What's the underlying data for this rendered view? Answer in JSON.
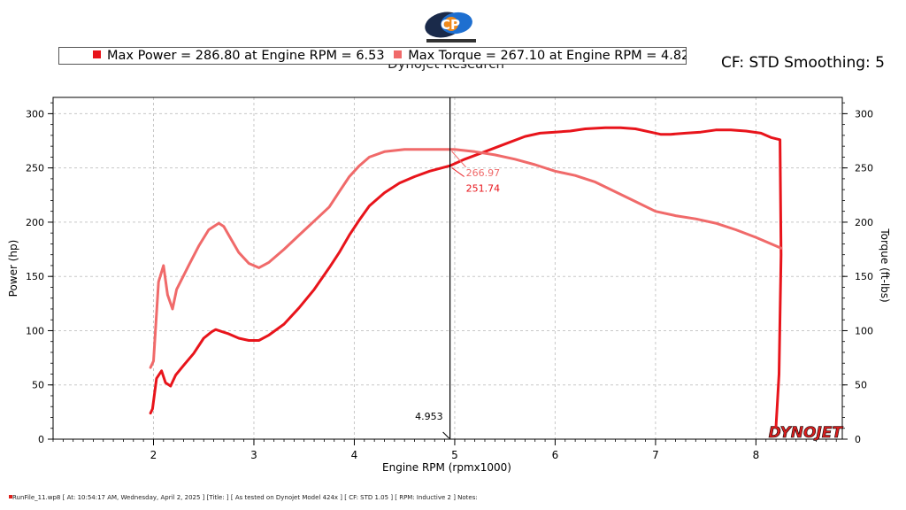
{
  "header": {
    "subtitle": "Dynojet Research",
    "cf_label": "CF: STD Smoothing: 5"
  },
  "legend": {
    "power_text": "Max Power = 286.80 at Engine RPM = 6.53",
    "torque_text": "Max Torque = 267.10 at Engine RPM = 4.82"
  },
  "footer": {
    "text": "RunFile_11.wp8 [ At: 10:54:17 AM, Wednesday, April 2, 2025 ] [Title: ]  [ As tested on Dynojet Model 424x ] [ CF: STD 1.05 ] [ RPM: Inductive 2 ] Notes:"
  },
  "watermark": "DYNOJET",
  "colors": {
    "power": "#e8141b",
    "torque": "#f06a6a",
    "cursor": "#000000"
  },
  "chart_data": {
    "type": "line",
    "xlabel": "Engine RPM (rpmx1000)",
    "ylabel": "Power (hp)",
    "y2label": "Torque (ft-lbs)",
    "xlim": [
      1.0,
      8.86
    ],
    "ylim": [
      0,
      315
    ],
    "y2lim": [
      0,
      315
    ],
    "x_ticks": [
      2,
      3,
      4,
      5,
      6,
      7,
      8
    ],
    "y_ticks": [
      0,
      50,
      100,
      150,
      200,
      250,
      300
    ],
    "y2_ticks": [
      0,
      50,
      100,
      150,
      200,
      250,
      300
    ],
    "grid": true,
    "cursor": {
      "x": 4.953,
      "label": "4.953",
      "power": 251.74,
      "torque": 266.97,
      "power_label": "251.74",
      "torque_label": "266.97"
    },
    "series": [
      {
        "key": "power",
        "points": [
          [
            1.97,
            24
          ],
          [
            1.99,
            28
          ],
          [
            2.03,
            56
          ],
          [
            2.08,
            63
          ],
          [
            2.12,
            52
          ],
          [
            2.17,
            49
          ],
          [
            2.22,
            59
          ],
          [
            2.3,
            68
          ],
          [
            2.4,
            79
          ],
          [
            2.5,
            93
          ],
          [
            2.58,
            99
          ],
          [
            2.62,
            101
          ],
          [
            2.75,
            97
          ],
          [
            2.85,
            93
          ],
          [
            2.95,
            91
          ],
          [
            3.05,
            91
          ],
          [
            3.15,
            96
          ],
          [
            3.3,
            106
          ],
          [
            3.45,
            121
          ],
          [
            3.6,
            138
          ],
          [
            3.75,
            158
          ],
          [
            3.85,
            172
          ],
          [
            3.95,
            188
          ],
          [
            4.05,
            202
          ],
          [
            4.15,
            215
          ],
          [
            4.3,
            227
          ],
          [
            4.45,
            236
          ],
          [
            4.6,
            242
          ],
          [
            4.75,
            247
          ],
          [
            4.953,
            252
          ],
          [
            5.1,
            258
          ],
          [
            5.3,
            265
          ],
          [
            5.5,
            272
          ],
          [
            5.7,
            279
          ],
          [
            5.85,
            282
          ],
          [
            6.0,
            283
          ],
          [
            6.15,
            284
          ],
          [
            6.3,
            286
          ],
          [
            6.5,
            287
          ],
          [
            6.65,
            287
          ],
          [
            6.8,
            286
          ],
          [
            6.95,
            283
          ],
          [
            7.05,
            281
          ],
          [
            7.15,
            281
          ],
          [
            7.3,
            282
          ],
          [
            7.45,
            283
          ],
          [
            7.6,
            285
          ],
          [
            7.75,
            285
          ],
          [
            7.9,
            284
          ],
          [
            8.05,
            282
          ],
          [
            8.15,
            278
          ],
          [
            8.24,
            276
          ],
          [
            8.25,
            170
          ],
          [
            8.23,
            60
          ],
          [
            8.2,
            12
          ]
        ]
      },
      {
        "key": "torque",
        "points": [
          [
            1.97,
            66
          ],
          [
            2.0,
            72
          ],
          [
            2.05,
            145
          ],
          [
            2.1,
            160
          ],
          [
            2.14,
            133
          ],
          [
            2.19,
            120
          ],
          [
            2.23,
            138
          ],
          [
            2.35,
            160
          ],
          [
            2.45,
            178
          ],
          [
            2.55,
            193
          ],
          [
            2.65,
            199
          ],
          [
            2.7,
            196
          ],
          [
            2.85,
            172
          ],
          [
            2.95,
            162
          ],
          [
            3.05,
            158
          ],
          [
            3.15,
            163
          ],
          [
            3.3,
            175
          ],
          [
            3.45,
            188
          ],
          [
            3.6,
            201
          ],
          [
            3.75,
            214
          ],
          [
            3.85,
            228
          ],
          [
            3.95,
            242
          ],
          [
            4.05,
            252
          ],
          [
            4.15,
            260
          ],
          [
            4.3,
            265
          ],
          [
            4.5,
            267
          ],
          [
            4.7,
            267
          ],
          [
            4.82,
            267
          ],
          [
            5.0,
            267
          ],
          [
            5.2,
            265
          ],
          [
            5.4,
            262
          ],
          [
            5.6,
            258
          ],
          [
            5.8,
            253
          ],
          [
            6.0,
            247
          ],
          [
            6.2,
            243
          ],
          [
            6.4,
            237
          ],
          [
            6.6,
            228
          ],
          [
            6.8,
            219
          ],
          [
            7.0,
            210
          ],
          [
            7.2,
            206
          ],
          [
            7.4,
            203
          ],
          [
            7.6,
            199
          ],
          [
            7.8,
            193
          ],
          [
            8.0,
            186
          ],
          [
            8.15,
            180
          ],
          [
            8.25,
            176
          ]
        ]
      }
    ]
  }
}
